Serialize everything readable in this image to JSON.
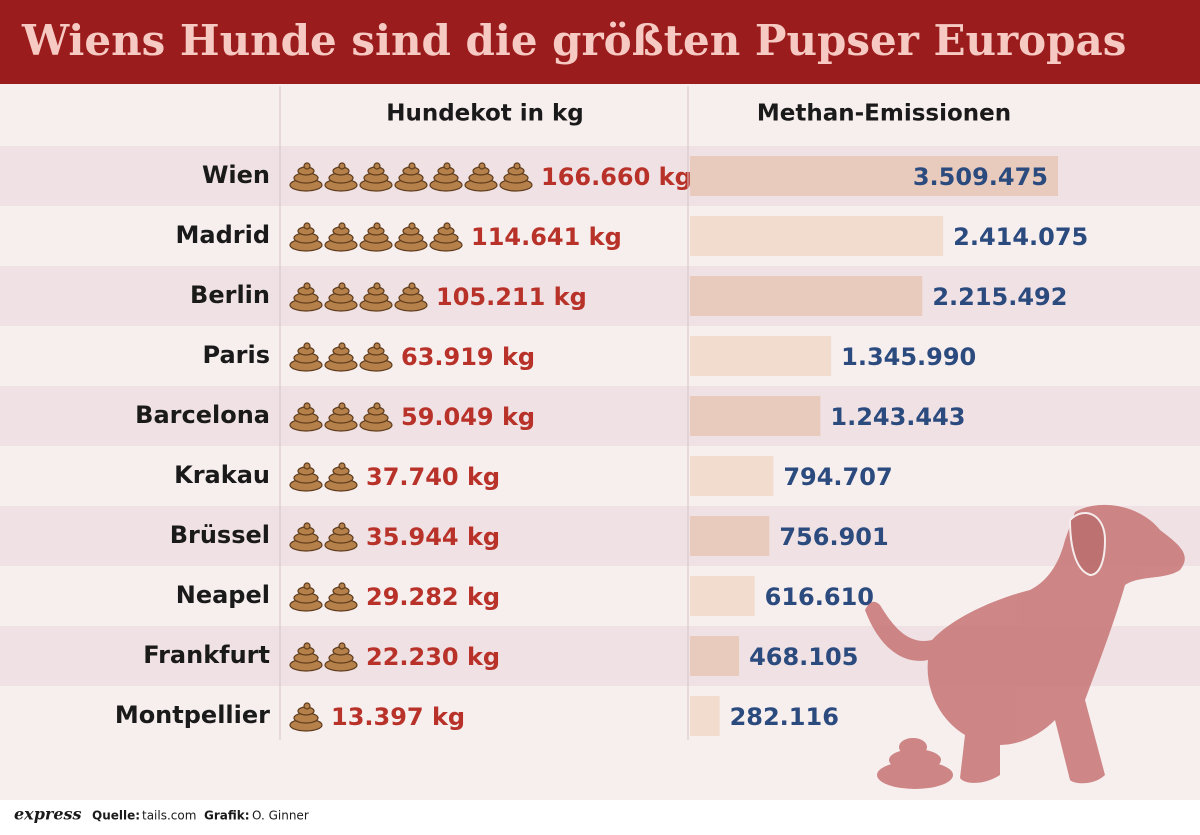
{
  "header": {
    "title": "Wiens Hunde sind die größten Pupser Europas"
  },
  "table": {
    "columns": [
      "Hundekot in kg",
      "Methan-Emissionen"
    ],
    "rows": [
      {
        "city": "Wien",
        "icons": 7,
        "kot": "166.660 kg",
        "methan": 3509475,
        "methan_label": "3.509.475"
      },
      {
        "city": "Madrid",
        "icons": 5,
        "kot": "114.641 kg",
        "methan": 2414075,
        "methan_label": "2.414.075"
      },
      {
        "city": "Berlin",
        "icons": 4,
        "kot": "105.211 kg",
        "methan": 2215492,
        "methan_label": "2.215.492"
      },
      {
        "city": "Paris",
        "icons": 3,
        "kot": "63.919 kg",
        "methan": 1345990,
        "methan_label": "1.345.990"
      },
      {
        "city": "Barcelona",
        "icons": 3,
        "kot": "59.049 kg",
        "methan": 1243443,
        "methan_label": "1.243.443"
      },
      {
        "city": "Krakau",
        "icons": 2,
        "kot": "37.740 kg",
        "methan": 794707,
        "methan_label": "794.707"
      },
      {
        "city": "Brüssel",
        "icons": 2,
        "kot": "35.944 kg",
        "methan": 756901,
        "methan_label": "756.901"
      },
      {
        "city": "Neapel",
        "icons": 2,
        "kot": "29.282 kg",
        "methan": 616610,
        "methan_label": "616.610"
      },
      {
        "city": "Frankfurt",
        "icons": 2,
        "kot": "22.230 kg",
        "methan": 468105,
        "methan_label": "468.105"
      },
      {
        "city": "Montpellier",
        "icons": 1,
        "kot": "13.397 kg",
        "methan": 282116,
        "methan_label": "282.116"
      }
    ]
  },
  "footer": {
    "logo": "express",
    "source_label": "Quelle:",
    "source": "tails.com",
    "graphic_label": "Grafik:",
    "graphic": "O. Ginner"
  }
}
